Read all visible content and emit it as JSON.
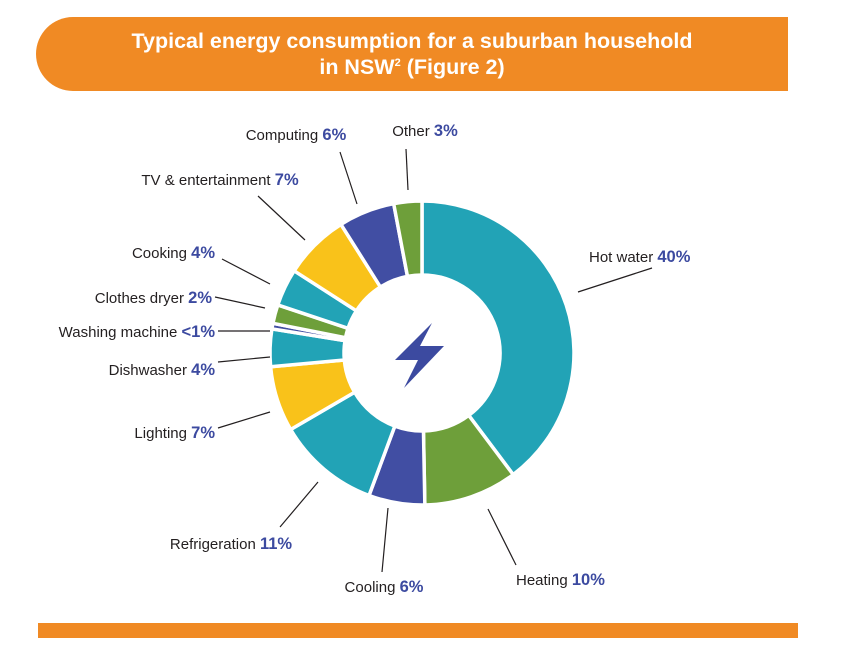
{
  "title": {
    "line1": "Typical energy consumption for a suburban household",
    "line2_main": "in NSW",
    "line2_sup": "2",
    "line2_suffix": " (Figure 2)"
  },
  "colors": {
    "banner": "#f08a24",
    "value_text": "#3c4aa0",
    "teal": "#22a3b6",
    "green": "#6e9f3a",
    "blue": "#414ea3",
    "yellow": "#f9c21a",
    "icon": "#3c4aa0"
  },
  "center_icon": "lightning-bolt-icon",
  "chart_data": {
    "type": "donut",
    "title": "Typical energy consumption for a suburban household in NSW (Figure 2)",
    "unit": "%",
    "slices": [
      {
        "label": "Hot water",
        "value": 40,
        "display": "40%",
        "color": "#22a3b6"
      },
      {
        "label": "Heating",
        "value": 10,
        "display": "10%",
        "color": "#6e9f3a"
      },
      {
        "label": "Cooling",
        "value": 6,
        "display": "6%",
        "color": "#414ea3"
      },
      {
        "label": "Refrigeration",
        "value": 11,
        "display": "11%",
        "color": "#22a3b6"
      },
      {
        "label": "Lighting",
        "value": 7,
        "display": "7%",
        "color": "#f9c21a"
      },
      {
        "label": "Dishwasher",
        "value": 4,
        "display": "4%",
        "color": "#22a3b6"
      },
      {
        "label": "Washing machine",
        "value": 0.6,
        "display": "<1%",
        "color": "#414ea3"
      },
      {
        "label": "Clothes dryer",
        "value": 2,
        "display": "2%",
        "color": "#6e9f3a"
      },
      {
        "label": "Cooking",
        "value": 4,
        "display": "4%",
        "color": "#22a3b6"
      },
      {
        "label": "TV & entertainment",
        "value": 7,
        "display": "7%",
        "color": "#f9c21a"
      },
      {
        "label": "Computing",
        "value": 6,
        "display": "6%",
        "color": "#414ea3"
      },
      {
        "label": "Other",
        "value": 3,
        "display": "3%",
        "color": "#6e9f3a"
      }
    ]
  }
}
